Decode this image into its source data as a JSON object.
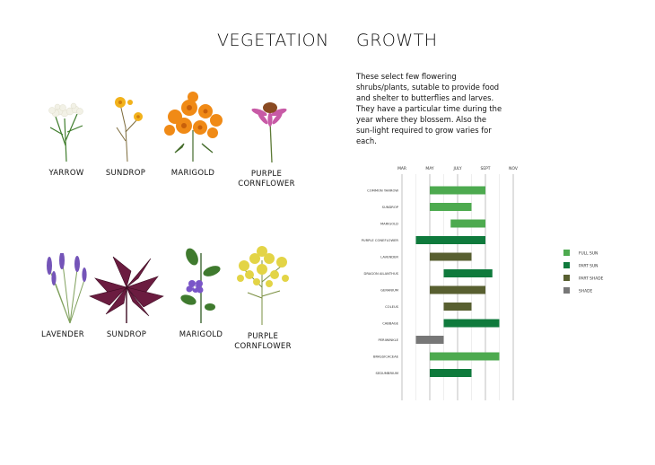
{
  "vegetation": {
    "title": "VEGETATION",
    "plants": [
      {
        "label": "YARROW",
        "icon": "yarrow-flower-icon"
      },
      {
        "label": "SUNDROP",
        "icon": "sundrop-flower-icon"
      },
      {
        "label": "MARIGOLD",
        "icon": "marigold-flower-icon"
      },
      {
        "label": "PURPLE\nCORNFLOWER",
        "icon": "purple-coneflower-icon"
      },
      {
        "label": "LAVENDER",
        "icon": "lavender-flower-icon"
      },
      {
        "label": "SUNDROP",
        "icon": "coleus-leaves-icon"
      },
      {
        "label": "MARIGOLD",
        "icon": "periwinkle-flower-icon"
      },
      {
        "label": "PURPLE\nCORNFLOWER",
        "icon": "goldenrod-flower-icon"
      }
    ]
  },
  "growth": {
    "title": "GROWTH",
    "description": "These select few flowering shrubs/plants, sutable to provide food and shelter to butterflies and larves. They have a particular time during the year where they blossem. Also the sun-light required to grow varies for each."
  },
  "colors": {
    "full_sun": "#4daa4f",
    "part_sun": "#0f7a3c",
    "part_shade": "#585f30",
    "shade": "#777777"
  },
  "chart_data": {
    "type": "gantt",
    "x_ticks": [
      "MAR",
      "MAY",
      "JULY",
      "SEPT",
      "NOV"
    ],
    "x_tick_values": [
      3,
      5,
      7,
      9,
      11
    ],
    "xlim": [
      3,
      11
    ],
    "grid": true,
    "legend_position": "right",
    "legend": [
      {
        "key": "full_sun",
        "name": "FULL SUN"
      },
      {
        "key": "part_sun",
        "name": "PART SUN"
      },
      {
        "key": "part_shade",
        "name": "PART SHADE"
      },
      {
        "key": "shade",
        "name": "SHADE"
      }
    ],
    "rows": [
      {
        "name": "COMMON YARROW",
        "start": 5,
        "end": 9,
        "category": "full_sun"
      },
      {
        "name": "SUNDROP",
        "start": 5,
        "end": 8,
        "category": "full_sun"
      },
      {
        "name": "MARIGOLD",
        "start": 6.5,
        "end": 9,
        "category": "full_sun"
      },
      {
        "name": "PURPLE CONEFLOWER",
        "start": 4,
        "end": 9,
        "category": "part_sun"
      },
      {
        "name": "LAVENDER",
        "start": 5,
        "end": 8,
        "category": "part_shade"
      },
      {
        "name": "DRAGON AILANTHUS",
        "start": 6,
        "end": 9.5,
        "category": "part_sun"
      },
      {
        "name": "GERANIUM",
        "start": 5,
        "end": 9,
        "category": "part_shade"
      },
      {
        "name": "COLEUS",
        "start": 6,
        "end": 8,
        "category": "part_shade"
      },
      {
        "name": "CABBAGE",
        "start": 6,
        "end": 10,
        "category": "part_sun"
      },
      {
        "name": "PERIWINKLE",
        "start": 4,
        "end": 6,
        "category": "shade"
      },
      {
        "name": "BRASSICACEAE",
        "start": 5,
        "end": 10,
        "category": "full_sun"
      },
      {
        "name": "SEDUMBRIUM",
        "start": 5,
        "end": 8,
        "category": "part_sun"
      }
    ]
  }
}
